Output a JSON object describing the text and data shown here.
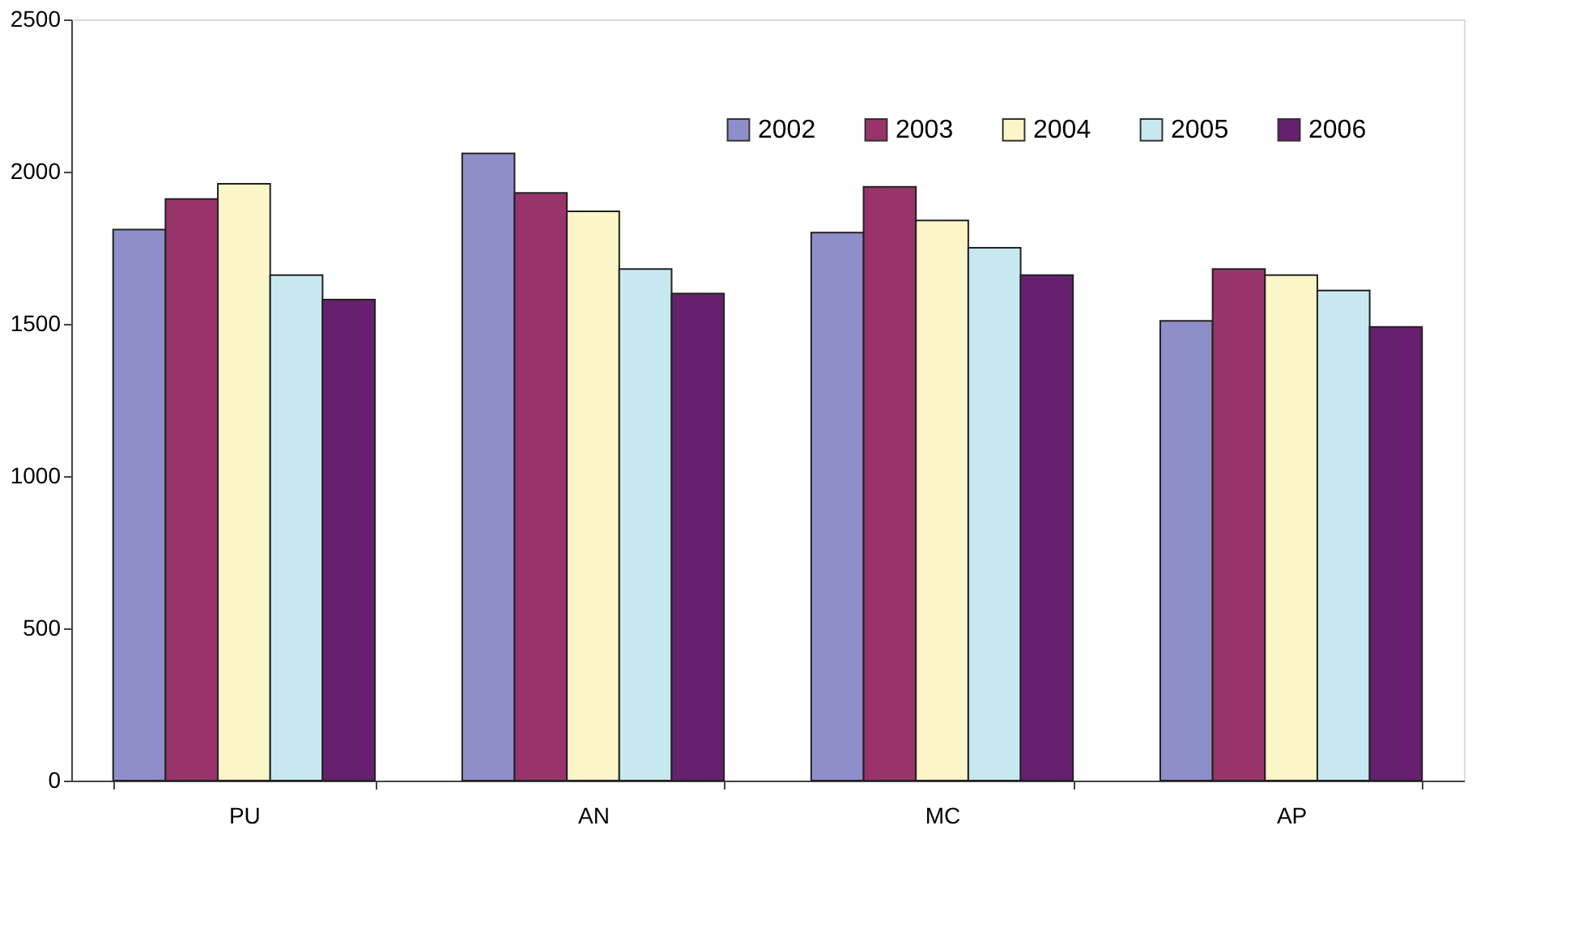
{
  "chart_data": {
    "type": "bar",
    "categories": [
      "PU",
      "AN",
      "MC",
      "AP"
    ],
    "series": [
      {
        "name": "2002",
        "color": "#8e8fca",
        "values": [
          1810,
          2060,
          1800,
          1510
        ]
      },
      {
        "name": "2003",
        "color": "#99346a",
        "values": [
          1910,
          1930,
          1950,
          1680
        ]
      },
      {
        "name": "2004",
        "color": "#fbf6c8",
        "values": [
          1960,
          1870,
          1840,
          1660
        ]
      },
      {
        "name": "2005",
        "color": "#c8e8f0",
        "values": [
          1660,
          1680,
          1750,
          1610
        ]
      },
      {
        "name": "2006",
        "color": "#66206e",
        "values": [
          1580,
          1600,
          1660,
          1490
        ]
      }
    ],
    "ylim": [
      0,
      2500
    ],
    "yticks": [
      0,
      500,
      1000,
      1500,
      2000,
      2500
    ],
    "grid": false,
    "legend": "top right"
  }
}
